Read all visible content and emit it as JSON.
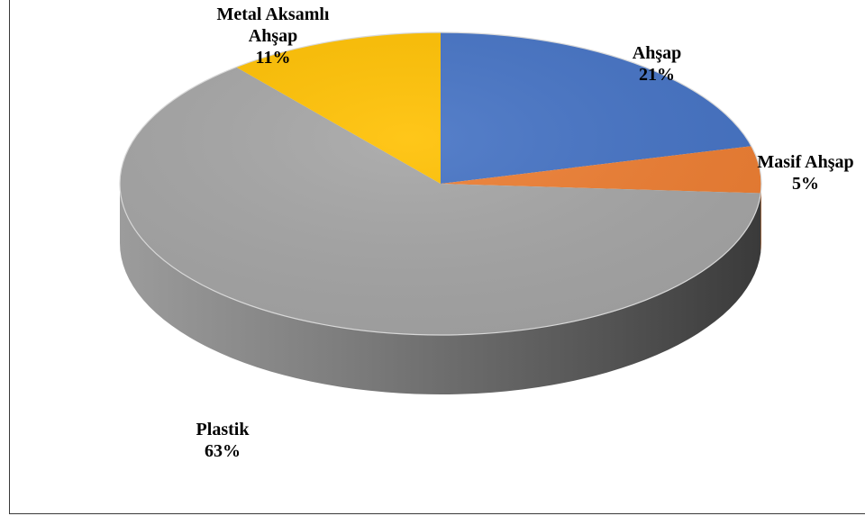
{
  "chart_data": {
    "type": "pie",
    "style": "3d",
    "title": "",
    "legend": "none",
    "slices": [
      {
        "label": "Ahşap",
        "percent_label": "21%",
        "value": 21,
        "color": "#4472C4",
        "side_color": "#2F5597"
      },
      {
        "label": "Masif Ahşap",
        "percent_label": "5%",
        "value": 5,
        "color": "#ED7D31",
        "side_color": "#B05A1E"
      },
      {
        "label": "Plastik",
        "percent_label": "63%",
        "value": 63,
        "color": "#A5A5A5",
        "side_color": "#6B6B6B"
      },
      {
        "label": "Metal Aksamlı Ahşap",
        "percent_label": "11%",
        "value": 11,
        "color": "#FFC000",
        "side_color": "#C08F00"
      }
    ]
  }
}
